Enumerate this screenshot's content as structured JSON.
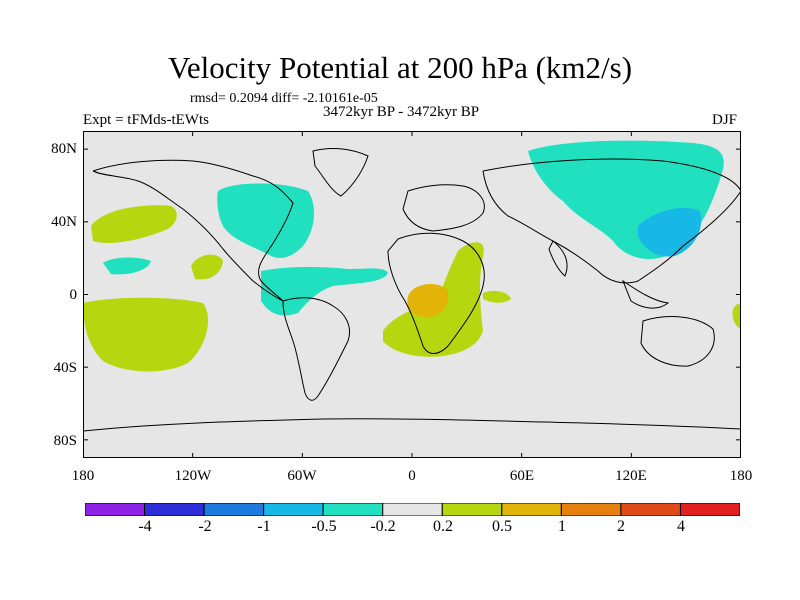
{
  "title": "Velocity Potential at 200 hPa (km2/s)",
  "stats_line": "rmsd= 0.2094 diff= -2.10161e-05",
  "period_line": "3472kyr BP - 3472kyr BP",
  "experiment_label": "Expt = tFMds-tEWts",
  "season_label": "DJF",
  "map": {
    "projection": "cylindrical equidistant",
    "lon_range": [
      -180,
      180
    ],
    "lat_range": [
      -90,
      90
    ],
    "ocean_land_color": "#e6e6e6",
    "coastline_color": "#000000",
    "y_ticks": [
      {
        "lat": 80,
        "label": "80N"
      },
      {
        "lat": 40,
        "label": "40N"
      },
      {
        "lat": 0,
        "label": "0"
      },
      {
        "lat": -40,
        "label": "40S"
      },
      {
        "lat": -80,
        "label": "80S"
      }
    ],
    "x_ticks": [
      {
        "lon": -180,
        "label": "180"
      },
      {
        "lon": -120,
        "label": "120W"
      },
      {
        "lon": -60,
        "label": "60W"
      },
      {
        "lon": 0,
        "label": "0"
      },
      {
        "lon": 60,
        "label": "60E"
      },
      {
        "lon": 120,
        "label": "120E"
      },
      {
        "lon": 180,
        "label": "180"
      }
    ]
  },
  "colorbar": {
    "colors": [
      "#8d21e6",
      "#2e2ed9",
      "#1f7ae0",
      "#17b8e6",
      "#20e0c0",
      "#e6e6e6",
      "#b6d60f",
      "#e2b40a",
      "#e58010",
      "#e04a18",
      "#e01f1f"
    ],
    "labels": [
      "-4",
      "-2",
      "-1",
      "-0.5",
      "-0.2",
      "0.2",
      "0.5",
      "1",
      "2",
      "4"
    ]
  }
}
